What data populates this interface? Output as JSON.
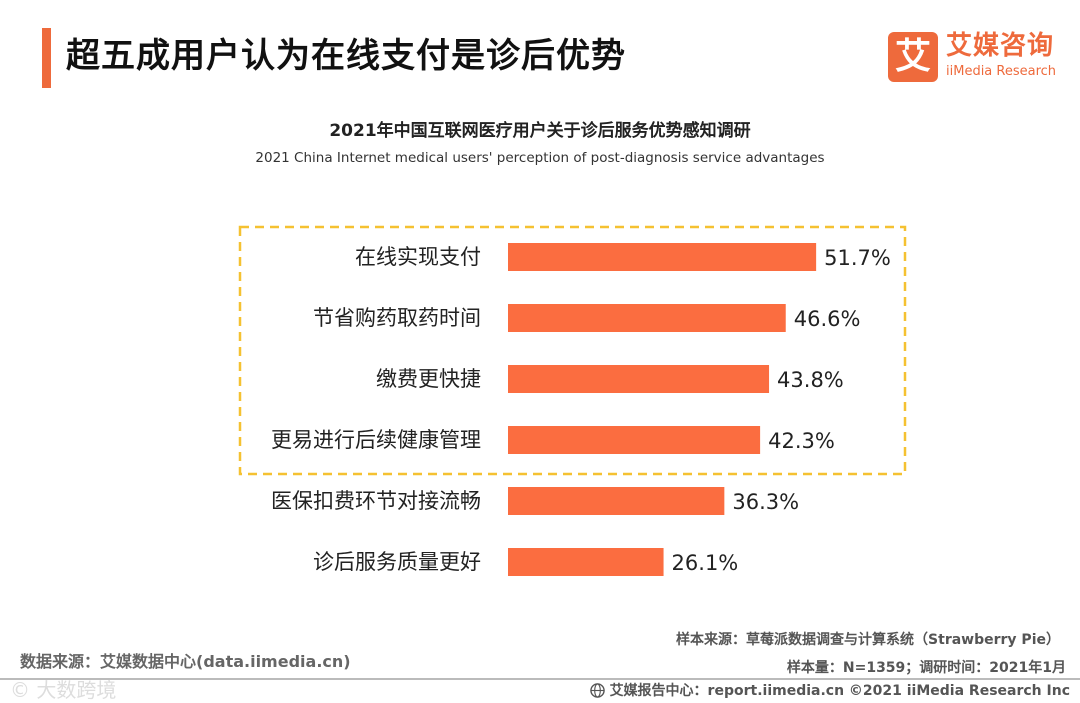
{
  "header": {
    "title": "超五成用户认为在线支付是诊后优势",
    "accent_color": "#ee6a3c"
  },
  "logo": {
    "mark": "艾",
    "cn": "艾媒咨询",
    "en": "iiMedia Research"
  },
  "chart_data": {
    "type": "bar",
    "orientation": "horizontal",
    "title": "2021年中国互联网医疗用户关于诊后服务优势感知调研",
    "subtitle": "2021 China Internet medical users' perception of post-diagnosis service advantages",
    "categories": [
      "在线实现支付",
      "节省购药取药时间",
      "缴费更快捷",
      "更易进行后续健康管理",
      "医保扣费环节对接流畅",
      "诊后服务质量更好"
    ],
    "values": [
      51.7,
      46.6,
      43.8,
      42.3,
      36.3,
      26.1
    ],
    "value_labels": [
      "51.7%",
      "46.6%",
      "43.8%",
      "42.3%",
      "36.3%",
      "26.1%"
    ],
    "unit": "%",
    "highlighted_count": 4,
    "bar_color": "#fb6d40",
    "highlight_box_color": "#f5c131",
    "xlim": [
      0,
      60
    ]
  },
  "footer": {
    "source": "数据来源：艾媒数据中心(data.iimedia.cn)",
    "sample_source": "样本来源：草莓派数据调查与计算系统（Strawberry Pie）",
    "sample_info": "样本量：N=1359；调研时间：2021年1月",
    "report": "艾媒报告中心：report.iimedia.cn  ©2021  iiMedia Research  Inc",
    "watermark": "© 大数跨境"
  }
}
